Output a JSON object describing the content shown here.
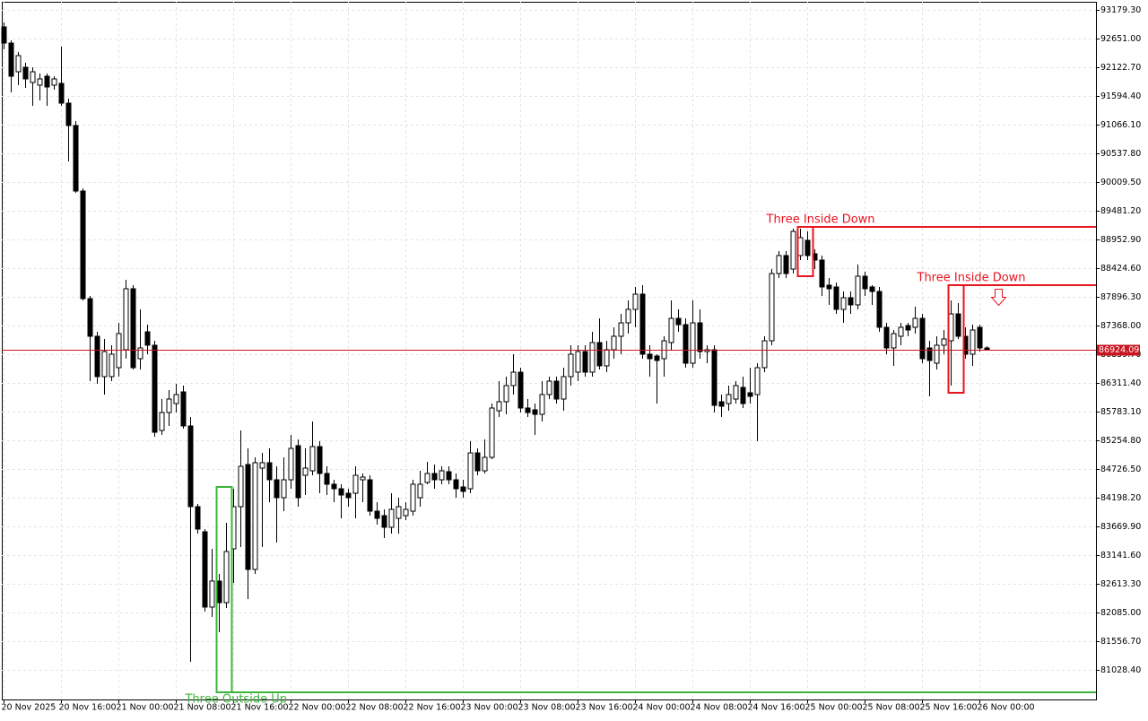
{
  "chart_data": {
    "type": "candlestick",
    "xlim": [
      -0.25,
      152.25
    ],
    "ylim": [
      80483,
      93328
    ],
    "grid": true,
    "up_color": "#ffffff",
    "down_color": "#000000",
    "current_price": 86924.09,
    "current_price_color": "#c8141e",
    "xticks": [
      {
        "value": 0,
        "label": "20 Nov 2025"
      },
      {
        "value": 8,
        "label": "20 Nov 16:00"
      },
      {
        "value": 16,
        "label": "21 Nov 00:00"
      },
      {
        "value": 24,
        "label": "21 Nov 08:00"
      },
      {
        "value": 32,
        "label": "21 Nov 16:00"
      },
      {
        "value": 40,
        "label": "22 Nov 00:00"
      },
      {
        "value": 48,
        "label": "22 Nov 08:00"
      },
      {
        "value": 56,
        "label": "22 Nov 16:00"
      },
      {
        "value": 64,
        "label": "23 Nov 00:00"
      },
      {
        "value": 72,
        "label": "23 Nov 08:00"
      },
      {
        "value": 80,
        "label": "23 Nov 16:00"
      },
      {
        "value": 88,
        "label": "24 Nov 00:00"
      },
      {
        "value": 96,
        "label": "24 Nov 08:00"
      },
      {
        "value": 104,
        "label": "24 Nov 16:00"
      },
      {
        "value": 112,
        "label": "25 Nov 00:00"
      },
      {
        "value": 120,
        "label": "25 Nov 08:00"
      },
      {
        "value": 128,
        "label": "25 Nov 16:00"
      },
      {
        "value": 136,
        "label": "26 Nov 00:00"
      }
    ],
    "yticks": [
      {
        "value": 93179.3,
        "label": "93179.30"
      },
      {
        "value": 92651.0,
        "label": "92651.00"
      },
      {
        "value": 92122.7,
        "label": "92122.70"
      },
      {
        "value": 91594.4,
        "label": "91594.40"
      },
      {
        "value": 91066.1,
        "label": "91066.10"
      },
      {
        "value": 90537.8,
        "label": "90537.80"
      },
      {
        "value": 90009.5,
        "label": "90009.50"
      },
      {
        "value": 89481.2,
        "label": "89481.20"
      },
      {
        "value": 88952.9,
        "label": "88952.90"
      },
      {
        "value": 88424.6,
        "label": "88424.60"
      },
      {
        "value": 87896.3,
        "label": "87896.30"
      },
      {
        "value": 87368.0,
        "label": "87368.00"
      },
      {
        "value": 86839.7,
        "label": "86839.70"
      },
      {
        "value": 86311.4,
        "label": "86311.40"
      },
      {
        "value": 85783.1,
        "label": "85783.10"
      },
      {
        "value": 85254.8,
        "label": "85254.80"
      },
      {
        "value": 84726.5,
        "label": "84726.50"
      },
      {
        "value": 84198.2,
        "label": "84198.20"
      },
      {
        "value": 83669.9,
        "label": "83669.90"
      },
      {
        "value": 83141.6,
        "label": "83141.60"
      },
      {
        "value": 82613.3,
        "label": "82613.30"
      },
      {
        "value": 82085.0,
        "label": "82085.00"
      },
      {
        "value": 81556.7,
        "label": "81556.70"
      },
      {
        "value": 81028.4,
        "label": "81028.40"
      }
    ],
    "open": [
      92866,
      92568,
      92040,
      92123,
      91842,
      91793,
      91958,
      91793,
      91826,
      91462,
      91050,
      89844,
      87863,
      87170,
      86427,
      86427,
      86592,
      86922,
      88045,
      86757,
      87252,
      87005,
      85436,
      85766,
      85931,
      86146,
      85519,
      84033,
      83571,
      82184,
      82663,
      82266,
      83257,
      84033,
      84809,
      82877,
      84743,
      84842,
      84528,
      84198,
      84528,
      85156,
      84611,
      84693,
      85139,
      84644,
      84446,
      84363,
      84280,
      84280,
      84528,
      84528,
      83950,
      83868,
      83653,
      83818,
      83868,
      83950,
      84198,
      84479,
      84644,
      84528,
      84677,
      84528,
      84396,
      84363,
      85023,
      84693,
      84941,
      85799,
      85965,
      86262,
      86509,
      85849,
      85816,
      85733,
      86097,
      86344,
      86014,
      86427,
      86509,
      86889,
      86509,
      87054,
      86625,
      86922,
      87170,
      87417,
      87665,
      87946,
      86840,
      86807,
      86757,
      87054,
      87500,
      87384,
      86674,
      87417,
      86889,
      86922,
      85965,
      85931,
      86014,
      86229,
      86130,
      86097,
      86592,
      87087,
      88325,
      88656,
      88408,
      88656,
      88936,
      88689,
      88573,
      88111,
      88078,
      87665,
      87880,
      87748,
      88276,
      88078,
      87995,
      87335,
      86955,
      87170,
      87368,
      87335,
      87500,
      86955,
      86674,
      87005,
      87087,
      87582,
      87170,
      86840,
      87335,
      86955
    ],
    "high": [
      92948,
      92618,
      92403,
      92205,
      92123,
      92007,
      92007,
      91958,
      92502,
      91545,
      91132,
      89894,
      87913,
      87252,
      87120,
      87005,
      87417,
      88210,
      88111,
      87665,
      87384,
      87087,
      86014,
      86179,
      86295,
      86262,
      85684,
      84082,
      83620,
      83257,
      82795,
      83736,
      84363,
      85436,
      85106,
      84941,
      85023,
      85106,
      84776,
      84941,
      85354,
      85271,
      85106,
      85601,
      85238,
      84776,
      84528,
      84446,
      84363,
      84776,
      84644,
      84611,
      84115,
      83983,
      84280,
      84198,
      84115,
      84528,
      84693,
      84858,
      84809,
      84776,
      84776,
      84644,
      84528,
      85238,
      85106,
      85271,
      85931,
      86344,
      86427,
      86840,
      86592,
      86014,
      85931,
      86344,
      86427,
      86427,
      86592,
      87005,
      87005,
      87005,
      87252,
      87500,
      87087,
      87335,
      87582,
      87830,
      88078,
      88111,
      87005,
      86840,
      87170,
      87830,
      87665,
      87500,
      87830,
      87665,
      87005,
      87005,
      86097,
      86262,
      86344,
      86427,
      86592,
      86674,
      87170,
      88408,
      88738,
      88738,
      89151,
      89151,
      89101,
      88771,
      88656,
      88243,
      88160,
      87995,
      87995,
      88491,
      88358,
      88111,
      88078,
      87417,
      87285,
      87417,
      87417,
      87715,
      87582,
      87087,
      87170,
      87285,
      87830,
      87781,
      87335,
      87384,
      87384,
      86988
    ],
    "low": [
      92453,
      91660,
      91793,
      91743,
      91413,
      91512,
      91413,
      91710,
      91413,
      90389,
      89811,
      87830,
      86344,
      86295,
      86097,
      86344,
      86427,
      86757,
      86559,
      86559,
      86840,
      85321,
      85354,
      85519,
      85766,
      85469,
      81177,
      83538,
      82101,
      82002,
      81721,
      82167,
      82629,
      83290,
      82332,
      82795,
      83290,
      84115,
      83372,
      83950,
      84363,
      84033,
      84247,
      84611,
      84280,
      84247,
      84115,
      83818,
      84033,
      83818,
      84115,
      83868,
      83703,
      83455,
      83538,
      83538,
      83785,
      83868,
      84033,
      84446,
      84363,
      84446,
      84446,
      84198,
      84198,
      84280,
      84611,
      84644,
      84908,
      85684,
      85733,
      86097,
      85766,
      85684,
      85354,
      85601,
      86014,
      85931,
      85799,
      86262,
      86344,
      86427,
      86427,
      86559,
      86509,
      86757,
      86840,
      87219,
      87335,
      86757,
      86427,
      85931,
      86427,
      86922,
      87252,
      86592,
      86592,
      86757,
      86674,
      85766,
      85684,
      85799,
      85931,
      85849,
      85931,
      85238,
      86509,
      87005,
      88243,
      88243,
      88325,
      88573,
      88573,
      88408,
      87913,
      87748,
      87582,
      87417,
      87582,
      87665,
      87913,
      87748,
      87252,
      86840,
      86625,
      87005,
      87170,
      87219,
      86674,
      86064,
      86559,
      86840,
      86262,
      87120,
      86757,
      86625,
      86889,
      86906
    ],
    "close": [
      92568,
      91958,
      92337,
      91908,
      92040,
      91908,
      91760,
      91908,
      91462,
      91050,
      89844,
      87863,
      87170,
      86427,
      86889,
      86840,
      87219,
      88045,
      86592,
      86955,
      87005,
      85403,
      85766,
      86014,
      86097,
      85519,
      84033,
      83620,
      82184,
      82663,
      82266,
      83207,
      84033,
      84776,
      82877,
      84842,
      84842,
      84528,
      84198,
      84528,
      85106,
      84198,
      84743,
      85139,
      84644,
      84446,
      84363,
      84247,
      84198,
      84611,
      84578,
      83950,
      83818,
      83653,
      83983,
      84033,
      83983,
      84446,
      84446,
      84644,
      84528,
      84693,
      84528,
      84363,
      84314,
      85023,
      84693,
      84941,
      85849,
      85965,
      86262,
      86509,
      85849,
      85766,
      85733,
      86097,
      86344,
      86014,
      86427,
      86840,
      86889,
      86509,
      87054,
      86625,
      86922,
      87170,
      87417,
      87665,
      87946,
      86840,
      86757,
      86724,
      87087,
      87500,
      87384,
      86674,
      87417,
      86889,
      86922,
      85898,
      85882,
      86097,
      86262,
      85931,
      86064,
      86592,
      87087,
      88325,
      88656,
      88325,
      89101,
      88986,
      88656,
      88573,
      88078,
      88045,
      87665,
      87880,
      87748,
      88276,
      88045,
      87995,
      87335,
      86955,
      87219,
      87335,
      87285,
      87500,
      86757,
      86724,
      87005,
      87120,
      87582,
      87170,
      86840,
      87285,
      86955,
      86924
    ],
    "patterns": [
      {
        "label": "Three Inside Down",
        "color": "#e8141e",
        "start": 111,
        "end": 112,
        "level": 89184,
        "box": [
          89184,
          88276
        ]
      },
      {
        "label": "Three Inside Down",
        "color": "#e8141e",
        "start": 132,
        "end": 133,
        "level": 88111,
        "box": [
          88111,
          86130
        ]
      },
      {
        "label": "Three Outside Up",
        "color": "#3cb43c",
        "start": 30,
        "end": 31,
        "level": 80615,
        "box": [
          84396,
          80615
        ]
      }
    ]
  }
}
